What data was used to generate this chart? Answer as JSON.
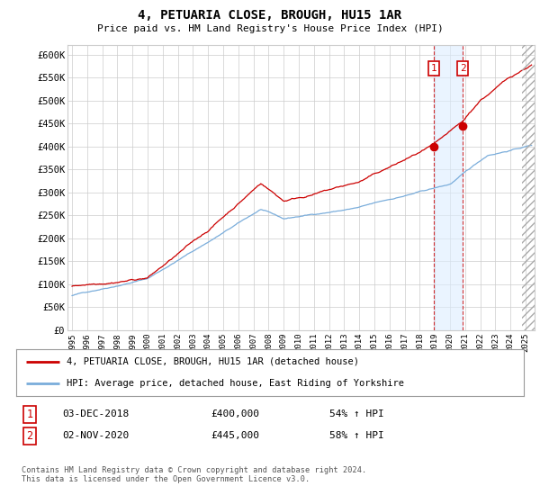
{
  "title": "4, PETUARIA CLOSE, BROUGH, HU15 1AR",
  "subtitle": "Price paid vs. HM Land Registry's House Price Index (HPI)",
  "ylim": [
    0,
    620000
  ],
  "yticks": [
    0,
    50000,
    100000,
    150000,
    200000,
    250000,
    300000,
    350000,
    400000,
    450000,
    500000,
    550000,
    600000
  ],
  "ytick_labels": [
    "£0",
    "£50K",
    "£100K",
    "£150K",
    "£200K",
    "£250K",
    "£300K",
    "£350K",
    "£400K",
    "£450K",
    "£500K",
    "£550K",
    "£600K"
  ],
  "xtick_years": [
    1995,
    1996,
    1997,
    1998,
    1999,
    2000,
    2001,
    2002,
    2003,
    2004,
    2005,
    2006,
    2007,
    2008,
    2009,
    2010,
    2011,
    2012,
    2013,
    2014,
    2015,
    2016,
    2017,
    2018,
    2019,
    2020,
    2021,
    2022,
    2023,
    2024,
    2025
  ],
  "sale1_date": 2018.92,
  "sale1_price": 400000,
  "sale1_date_str": "03-DEC-2018",
  "sale1_pct": "54%",
  "sale2_date": 2020.84,
  "sale2_price": 445000,
  "sale2_date_str": "02-NOV-2020",
  "sale2_pct": "58%",
  "line_color_property": "#cc0000",
  "line_color_hpi": "#7aaddb",
  "sale_marker_color": "#cc0000",
  "legend_label_property": "4, PETUARIA CLOSE, BROUGH, HU15 1AR (detached house)",
  "legend_label_hpi": "HPI: Average price, detached house, East Riding of Yorkshire",
  "footer": "Contains HM Land Registry data © Crown copyright and database right 2024.\nThis data is licensed under the Open Government Licence v3.0.",
  "grid_color": "#cccccc",
  "bg_color": "#ffffff",
  "shade_color": "#ddeeff",
  "hatch_start": 2024.75,
  "xlim_left": 1994.7,
  "xlim_right": 2025.6
}
